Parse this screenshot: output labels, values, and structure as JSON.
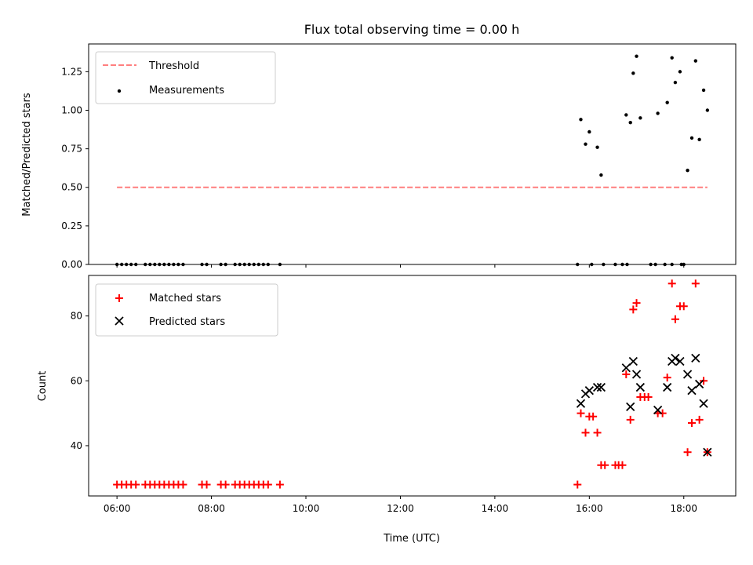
{
  "chart_data": [
    {
      "type": "scatter",
      "title": "Flux total observing time = 0.00 h",
      "xlabel": "",
      "ylabel": "Matched/Predicted stars",
      "xlim": [
        5.4,
        19.1
      ],
      "ylim": [
        0.0,
        1.43
      ],
      "yticks": [
        "0.00",
        "0.25",
        "0.50",
        "0.75",
        "1.00",
        "1.25"
      ],
      "grid": false,
      "legend_position": "top-left",
      "colors": {
        "threshold": "#ff7f7f",
        "measurements": "#000000"
      },
      "threshold": {
        "name": "Threshold",
        "x": [
          6.0,
          18.5
        ],
        "y": 0.5,
        "style": "dashed"
      },
      "series": [
        {
          "name": "Measurements",
          "marker": "dot",
          "points": [
            [
              6.0,
              0
            ],
            [
              6.1,
              0
            ],
            [
              6.2,
              0
            ],
            [
              6.3,
              0
            ],
            [
              6.4,
              0
            ],
            [
              6.6,
              0
            ],
            [
              6.7,
              0
            ],
            [
              6.8,
              0
            ],
            [
              6.9,
              0
            ],
            [
              7.0,
              0
            ],
            [
              7.1,
              0
            ],
            [
              7.2,
              0
            ],
            [
              7.3,
              0
            ],
            [
              7.4,
              0
            ],
            [
              7.8,
              0
            ],
            [
              7.9,
              0
            ],
            [
              8.2,
              0
            ],
            [
              8.3,
              0
            ],
            [
              8.5,
              0
            ],
            [
              8.6,
              0
            ],
            [
              8.7,
              0
            ],
            [
              8.8,
              0
            ],
            [
              8.9,
              0
            ],
            [
              9.0,
              0
            ],
            [
              9.1,
              0
            ],
            [
              9.2,
              0
            ],
            [
              9.45,
              0
            ],
            [
              15.75,
              0
            ],
            [
              16.05,
              0
            ],
            [
              16.3,
              0
            ],
            [
              16.55,
              0
            ],
            [
              16.7,
              0
            ],
            [
              16.8,
              0
            ],
            [
              17.3,
              0
            ],
            [
              17.4,
              0
            ],
            [
              17.6,
              0
            ],
            [
              17.75,
              0
            ],
            [
              17.95,
              0
            ],
            [
              18.0,
              0
            ],
            [
              15.82,
              0.94
            ],
            [
              15.92,
              0.78
            ],
            [
              16.0,
              0.86
            ],
            [
              16.17,
              0.76
            ],
            [
              16.25,
              0.58
            ],
            [
              16.78,
              0.97
            ],
            [
              16.87,
              0.92
            ],
            [
              16.93,
              1.24
            ],
            [
              17.0,
              1.35
            ],
            [
              17.08,
              0.95
            ],
            [
              17.45,
              0.98
            ],
            [
              17.65,
              1.05
            ],
            [
              17.75,
              1.34
            ],
            [
              17.82,
              1.18
            ],
            [
              17.92,
              1.25
            ],
            [
              18.08,
              0.61
            ],
            [
              18.17,
              0.82
            ],
            [
              18.25,
              1.32
            ],
            [
              18.33,
              0.81
            ],
            [
              18.42,
              1.13
            ],
            [
              18.5,
              1.0
            ]
          ]
        }
      ]
    },
    {
      "type": "scatter",
      "title": "",
      "xlabel": "Time (UTC)",
      "ylabel": "Count",
      "xlim": [
        5.4,
        19.1
      ],
      "ylim": [
        24.5,
        92.5
      ],
      "xticks": [
        "06:00",
        "08:00",
        "10:00",
        "12:00",
        "14:00",
        "16:00",
        "18:00"
      ],
      "yticks": [
        "40",
        "60",
        "80"
      ],
      "grid": false,
      "legend_position": "top-left",
      "colors": {
        "matched": "#ff0000",
        "predicted": "#000000"
      },
      "series": [
        {
          "name": "Matched stars",
          "marker": "plus",
          "points": [
            [
              6.0,
              28
            ],
            [
              6.1,
              28
            ],
            [
              6.2,
              28
            ],
            [
              6.3,
              28
            ],
            [
              6.4,
              28
            ],
            [
              6.6,
              28
            ],
            [
              6.7,
              28
            ],
            [
              6.8,
              28
            ],
            [
              6.9,
              28
            ],
            [
              7.0,
              28
            ],
            [
              7.1,
              28
            ],
            [
              7.2,
              28
            ],
            [
              7.3,
              28
            ],
            [
              7.4,
              28
            ],
            [
              7.8,
              28
            ],
            [
              7.9,
              28
            ],
            [
              8.2,
              28
            ],
            [
              8.3,
              28
            ],
            [
              8.5,
              28
            ],
            [
              8.6,
              28
            ],
            [
              8.7,
              28
            ],
            [
              8.8,
              28
            ],
            [
              8.9,
              28
            ],
            [
              9.0,
              28
            ],
            [
              9.1,
              28
            ],
            [
              9.2,
              28
            ],
            [
              9.45,
              28
            ],
            [
              15.75,
              28
            ],
            [
              15.82,
              50
            ],
            [
              15.92,
              44
            ],
            [
              16.0,
              49
            ],
            [
              16.08,
              49
            ],
            [
              16.17,
              44
            ],
            [
              16.25,
              34
            ],
            [
              16.33,
              34
            ],
            [
              16.55,
              34
            ],
            [
              16.62,
              34
            ],
            [
              16.7,
              34
            ],
            [
              16.78,
              62
            ],
            [
              16.87,
              48
            ],
            [
              16.93,
              82
            ],
            [
              17.0,
              84
            ],
            [
              17.08,
              55
            ],
            [
              17.17,
              55
            ],
            [
              17.25,
              55
            ],
            [
              17.45,
              50
            ],
            [
              17.55,
              50
            ],
            [
              17.65,
              61
            ],
            [
              17.75,
              90
            ],
            [
              17.82,
              79
            ],
            [
              17.92,
              83
            ],
            [
              18.0,
              83
            ],
            [
              18.08,
              38
            ],
            [
              18.17,
              47
            ],
            [
              18.25,
              90
            ],
            [
              18.33,
              48
            ],
            [
              18.42,
              60
            ],
            [
              18.5,
              38
            ]
          ]
        },
        {
          "name": "Predicted stars",
          "marker": "x",
          "points": [
            [
              15.82,
              53
            ],
            [
              15.92,
              56
            ],
            [
              16.0,
              57
            ],
            [
              16.17,
              58
            ],
            [
              16.25,
              58
            ],
            [
              16.78,
              64
            ],
            [
              16.87,
              52
            ],
            [
              16.93,
              66
            ],
            [
              17.0,
              62
            ],
            [
              17.08,
              58
            ],
            [
              17.45,
              51
            ],
            [
              17.65,
              58
            ],
            [
              17.75,
              66
            ],
            [
              17.82,
              67
            ],
            [
              17.92,
              66
            ],
            [
              18.08,
              62
            ],
            [
              18.17,
              57
            ],
            [
              18.25,
              67
            ],
            [
              18.33,
              59
            ],
            [
              18.42,
              53
            ],
            [
              18.5,
              38
            ]
          ]
        }
      ]
    }
  ]
}
